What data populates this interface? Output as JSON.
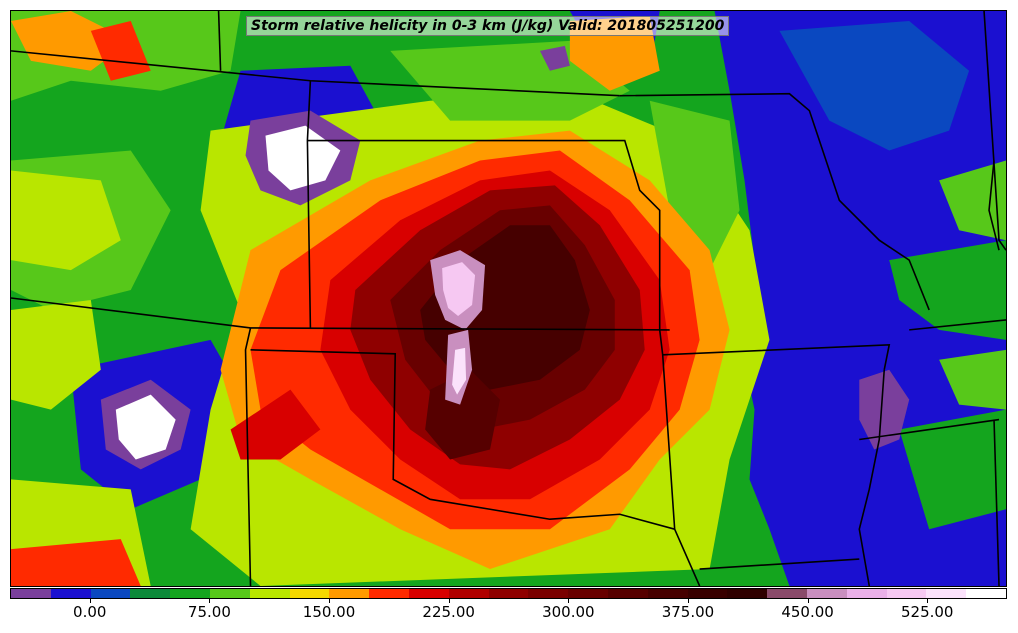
{
  "title": "Storm relative helicity in 0-3 km (J/kg) Valid: 201805251200",
  "colorbar": {
    "min": -50,
    "max": 575,
    "step": 25,
    "colors": [
      "#7a3f9c",
      "#1b10d0",
      "#0a48c0",
      "#0c8a3a",
      "#14a51e",
      "#57c81a",
      "#b9e600",
      "#f5d800",
      "#ff9a00",
      "#ff2a00",
      "#d80000",
      "#b00000",
      "#8f0000",
      "#7a0000",
      "#680000",
      "#560000",
      "#460000",
      "#380000",
      "#2e0000",
      "#8a4a6a",
      "#c98fbf",
      "#eab0e8",
      "#f6c8f2",
      "#fbe2fb",
      "#ffffff"
    ],
    "tick_labels": [
      "0.00",
      "75.00",
      "150.00",
      "225.00",
      "300.00",
      "375.00",
      "450.00",
      "525.00"
    ],
    "tick_values": [
      0,
      75,
      150,
      225,
      300,
      375,
      450,
      525
    ]
  },
  "map": {
    "background_color": "#14a51e",
    "fields": {
      "low_helicity_blue": "#1b10d0",
      "mid_green": "#57c81a",
      "yellow": "#b9e600",
      "orange": "#ff9a00",
      "red": "#ff2a00",
      "dark_red": "#8f0000",
      "maroon": "#460000",
      "pink": "#eab0e8",
      "purple": "#7a3f9c",
      "white": "#ffffff"
    },
    "border_color": "#000000"
  }
}
